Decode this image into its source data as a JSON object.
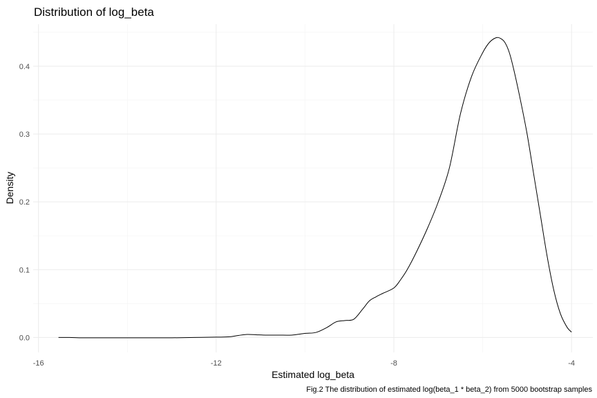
{
  "chart_data": {
    "type": "line",
    "title": "Distribution of log_beta",
    "xlabel": "Estimated log_beta",
    "ylabel": "Density",
    "caption": "Fig.2 The distribution of estimated log(beta_1 * beta_2) from 5000 bootstrap samples",
    "xlim": [
      -16.12,
      -3.52
    ],
    "ylim": [
      -0.022,
      0.462
    ],
    "x_ticks": [
      -16,
      -12,
      -8,
      -4
    ],
    "y_ticks": [
      0.0,
      0.1,
      0.2,
      0.3,
      0.4
    ],
    "x_tick_labels": [
      "-16",
      "-12",
      "-8",
      "-4"
    ],
    "y_tick_labels": [
      "0.0",
      "0.1",
      "0.2",
      "0.3",
      "0.4"
    ],
    "grid": true,
    "legend": "none",
    "colors": {
      "line": "#000000",
      "grid": "#ebebeb"
    },
    "series": [
      {
        "x": [
          -15.55,
          -15.3,
          -15.0,
          -14.5,
          -14.0,
          -13.5,
          -13.0,
          -12.5,
          -12.0,
          -11.7,
          -11.5,
          -11.3,
          -11.1,
          -10.9,
          -10.6,
          -10.3,
          -10.0,
          -9.75,
          -9.5,
          -9.3,
          -9.1,
          -8.9,
          -8.7,
          -8.55,
          -8.4,
          -8.25,
          -8.0,
          -7.85,
          -7.7,
          -7.5,
          -7.25,
          -7.0,
          -6.75,
          -6.5,
          -6.25,
          -6.0,
          -5.85,
          -5.7,
          -5.6,
          -5.5,
          -5.4,
          -5.3,
          -5.15,
          -5.0,
          -4.85,
          -4.7,
          -4.55,
          -4.4,
          -4.25,
          -4.1,
          -4.0
        ],
        "y": [
          0.0,
          0.0,
          -0.0005,
          -0.0005,
          -0.0005,
          -0.0005,
          -0.0005,
          0.0,
          0.0005,
          0.001,
          0.003,
          0.0045,
          0.004,
          0.0035,
          0.0035,
          0.0035,
          0.006,
          0.0075,
          0.015,
          0.023,
          0.025,
          0.027,
          0.042,
          0.054,
          0.06,
          0.065,
          0.073,
          0.085,
          0.1,
          0.125,
          0.16,
          0.2,
          0.25,
          0.33,
          0.385,
          0.42,
          0.435,
          0.442,
          0.441,
          0.435,
          0.42,
          0.395,
          0.35,
          0.3,
          0.24,
          0.18,
          0.12,
          0.07,
          0.035,
          0.015,
          0.008
        ]
      }
    ]
  }
}
